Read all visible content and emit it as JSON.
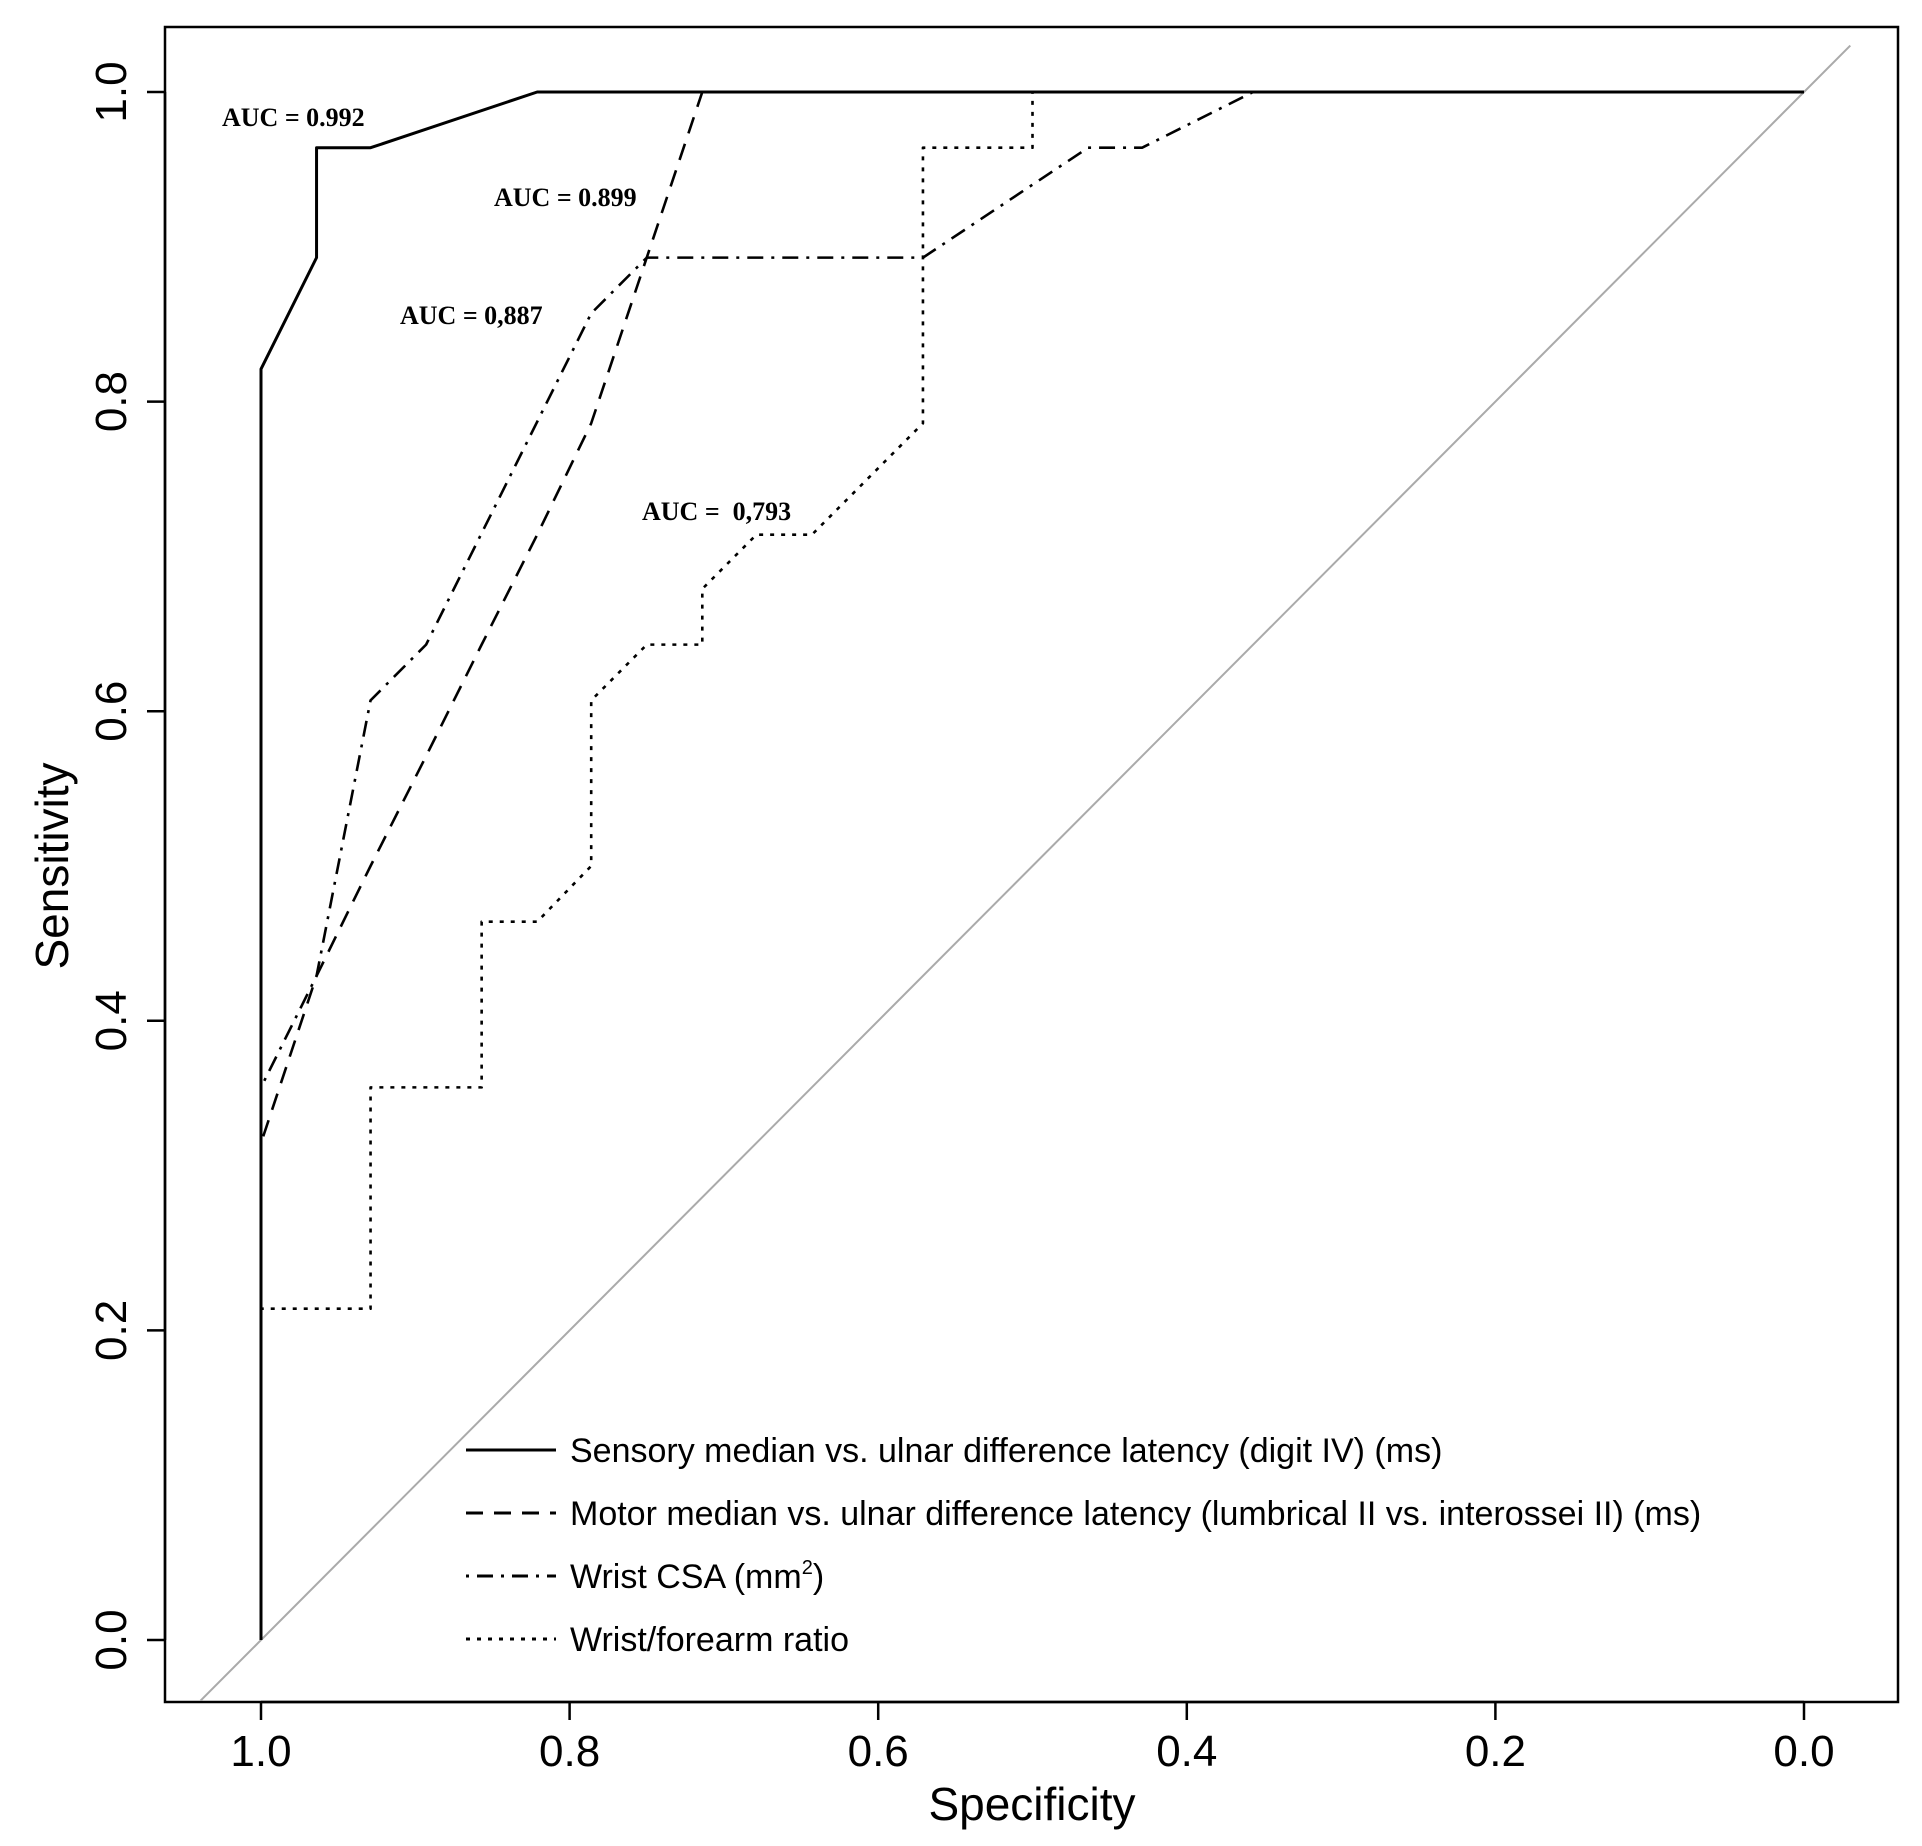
{
  "chart_data": {
    "type": "line",
    "title": "",
    "xlabel": "Specificity",
    "ylabel": "Sensitivity",
    "xlim": [
      1.05,
      -0.06
    ],
    "ylim": [
      -0.04,
      1.04
    ],
    "x_reversed": true,
    "x_ticks": [
      1.0,
      0.8,
      0.6,
      0.4,
      0.2,
      0.0
    ],
    "x_tick_labels": [
      "1.0",
      "0.8",
      "0.6",
      "0.4",
      "0.2",
      "0.0"
    ],
    "y_ticks": [
      0.0,
      0.2,
      0.4,
      0.6,
      0.8,
      1.0
    ],
    "y_tick_labels": [
      "0.0",
      "0.2",
      "0.4",
      "0.6",
      "0.8",
      "1.0"
    ],
    "reference_line": {
      "from": [
        1.0,
        0.0
      ],
      "to": [
        0.0,
        1.0
      ],
      "color": "#aaaaaa"
    },
    "series": [
      {
        "name": "Sensory median vs. ulnar difference latency (digit IV) (ms)",
        "style": "solid",
        "auc_label": "AUC = 0.992",
        "points": [
          [
            1.0,
            0.0
          ],
          [
            1.0,
            0.821
          ],
          [
            0.964,
            0.893
          ],
          [
            0.964,
            0.964
          ],
          [
            0.929,
            0.964
          ],
          [
            0.821,
            1.0
          ],
          [
            0.0,
            1.0
          ]
        ]
      },
      {
        "name": "Motor median vs. ulnar difference latency (lumbrical II vs. interossei II) (ms)",
        "style": "dashed",
        "auc_label": "AUC = 0.899",
        "points": [
          [
            1.0,
            0.0
          ],
          [
            1.0,
            0.321
          ],
          [
            0.964,
            0.429
          ],
          [
            0.929,
            0.5
          ],
          [
            0.893,
            0.571
          ],
          [
            0.857,
            0.643
          ],
          [
            0.821,
            0.714
          ],
          [
            0.786,
            0.786
          ],
          [
            0.75,
            0.893
          ],
          [
            0.714,
            1.0
          ],
          [
            0.0,
            1.0
          ]
        ]
      },
      {
        "name": "Wrist CSA (mm2)",
        "legend_text": "Wrist CSA (mm",
        "legend_sup": "2",
        "legend_close": ")",
        "style": "dashdot",
        "auc_label": "AUC = 0,887",
        "points": [
          [
            1.0,
            0.0
          ],
          [
            1.0,
            0.357
          ],
          [
            0.964,
            0.429
          ],
          [
            0.929,
            0.607
          ],
          [
            0.893,
            0.643
          ],
          [
            0.786,
            0.857
          ],
          [
            0.75,
            0.893
          ],
          [
            0.571,
            0.893
          ],
          [
            0.464,
            0.964
          ],
          [
            0.429,
            0.964
          ],
          [
            0.357,
            1.0
          ],
          [
            0.0,
            1.0
          ]
        ]
      },
      {
        "name": "Wrist/forearm ratio",
        "style": "dotted",
        "auc_label": "AUC =  0,793",
        "points": [
          [
            1.0,
            0.0
          ],
          [
            1.0,
            0.214
          ],
          [
            0.929,
            0.214
          ],
          [
            0.929,
            0.357
          ],
          [
            0.857,
            0.357
          ],
          [
            0.857,
            0.464
          ],
          [
            0.821,
            0.464
          ],
          [
            0.786,
            0.5
          ],
          [
            0.786,
            0.607
          ],
          [
            0.75,
            0.643
          ],
          [
            0.714,
            0.643
          ],
          [
            0.714,
            0.679
          ],
          [
            0.679,
            0.714
          ],
          [
            0.643,
            0.714
          ],
          [
            0.571,
            0.786
          ],
          [
            0.571,
            0.964
          ],
          [
            0.5,
            0.964
          ],
          [
            0.5,
            1.0
          ],
          [
            0.0,
            1.0
          ]
        ]
      }
    ],
    "legend_position": "bottom-right"
  }
}
